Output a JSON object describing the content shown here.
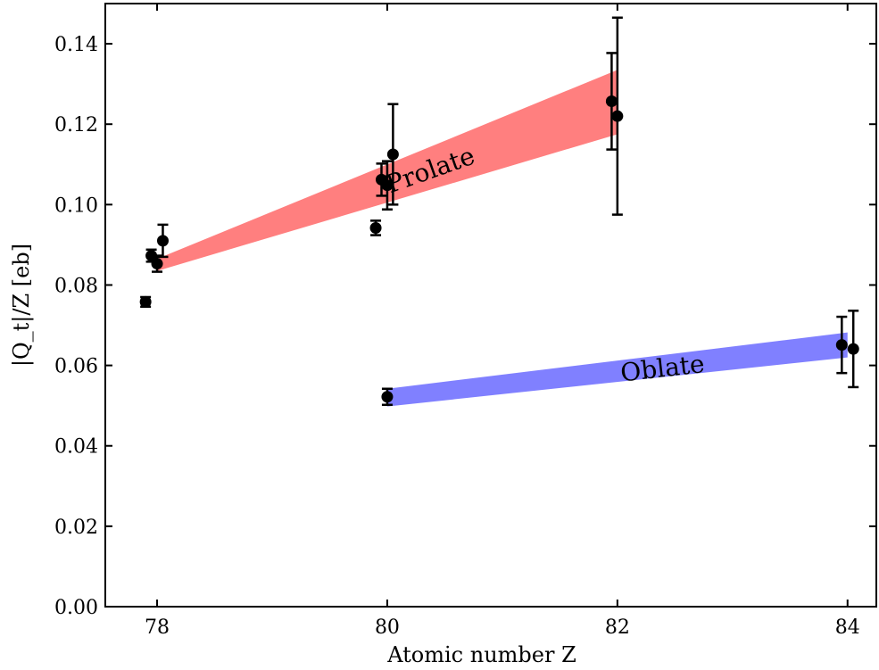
{
  "chart_data": {
    "type": "scatter",
    "title": "",
    "xlabel": "Atomic number Z",
    "ylabel": "|Q_t|/Z [eb]",
    "xlim": [
      77.55,
      84.25
    ],
    "ylim": [
      0,
      0.15
    ],
    "x_ticks": [
      78,
      80,
      82,
      84
    ],
    "x_tick_labels": [
      "78",
      "80",
      "82",
      "84"
    ],
    "y_ticks": [
      0.0,
      0.02,
      0.04,
      0.06,
      0.08,
      0.1,
      0.12,
      0.14
    ],
    "y_tick_labels": [
      "0.00",
      "0.02",
      "0.04",
      "0.06",
      "0.08",
      "0.10",
      "0.12",
      "0.14"
    ],
    "grid": false,
    "legend": "none",
    "bands": [
      {
        "name": "Prolate",
        "color": "#ff7f7f",
        "x": [
          78,
          82
        ],
        "lower": [
          0.0835,
          0.1175
        ],
        "upper": [
          0.0865,
          0.1335
        ]
      },
      {
        "name": "Oblate",
        "color": "#8080ff",
        "x": [
          80,
          84
        ],
        "lower": [
          0.0498,
          0.062
        ],
        "upper": [
          0.0542,
          0.0682
        ]
      }
    ],
    "points": [
      {
        "x": 77.9,
        "y": 0.0758,
        "err": 0.0012
      },
      {
        "x": 77.95,
        "y": 0.0873,
        "err": 0.0015
      },
      {
        "x": 78.0,
        "y": 0.0853,
        "err": 0.002
      },
      {
        "x": 78.05,
        "y": 0.091,
        "err": 0.004
      },
      {
        "x": 79.9,
        "y": 0.0942,
        "err": 0.0018
      },
      {
        "x": 79.95,
        "y": 0.1062,
        "err": 0.004
      },
      {
        "x": 80.0,
        "y": 0.1048,
        "err": 0.006
      },
      {
        "x": 80.05,
        "y": 0.1125,
        "err": 0.0125
      },
      {
        "x": 80.0,
        "y": 0.0522,
        "err": 0.002
      },
      {
        "x": 81.95,
        "y": 0.1257,
        "err": 0.012
      },
      {
        "x": 82.0,
        "y": 0.122,
        "err": 0.0245
      },
      {
        "x": 83.95,
        "y": 0.0651,
        "err": 0.007
      },
      {
        "x": 84.05,
        "y": 0.0641,
        "err": 0.0095
      }
    ],
    "colors": {
      "points": "#000000"
    }
  }
}
